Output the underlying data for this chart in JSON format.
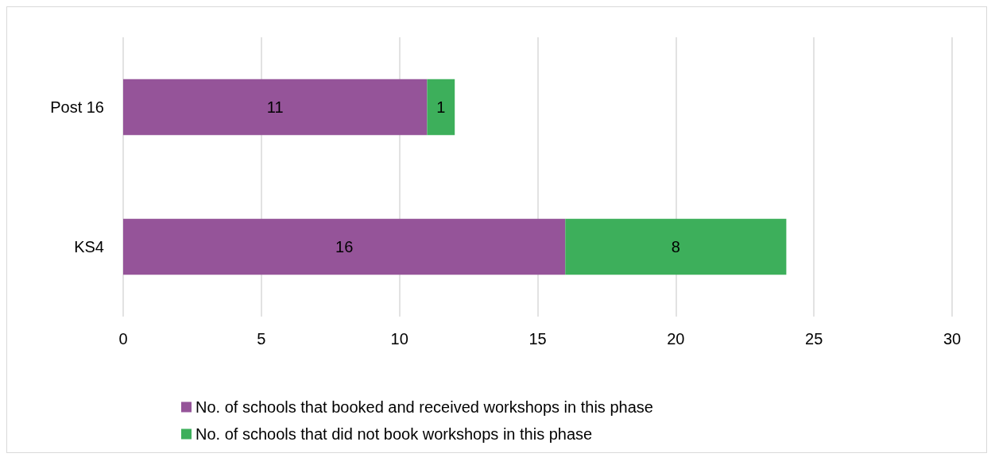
{
  "chart_data": {
    "type": "bar",
    "orientation": "horizontal",
    "stacked": true,
    "categories": [
      "Post 16",
      "KS4"
    ],
    "series": [
      {
        "name": "No. of schools that booked and received workshops in this phase",
        "color": "#955499",
        "values": [
          11,
          16
        ]
      },
      {
        "name": "No. of schools that did not book workshops in this phase",
        "color": "#3daf5b",
        "values": [
          1,
          8
        ]
      }
    ],
    "xlim": [
      0,
      30
    ],
    "xticks": [
      0,
      5,
      10,
      15,
      20,
      25,
      30
    ],
    "grid": "x",
    "legend": "bottom",
    "data_labels": true
  }
}
